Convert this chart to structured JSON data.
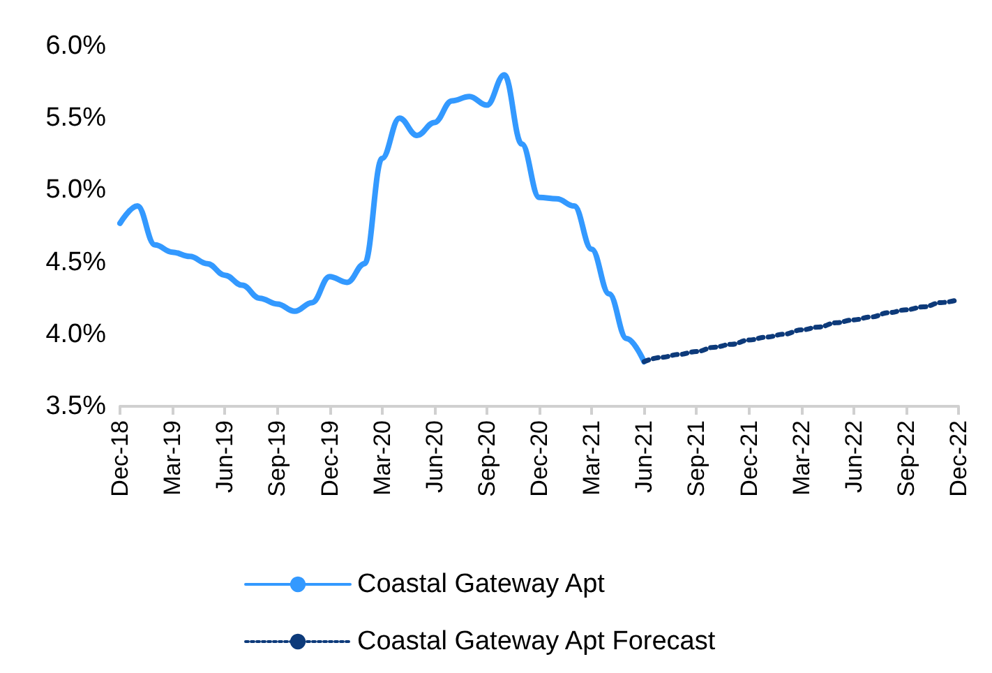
{
  "chart_data": {
    "type": "line",
    "categories": [
      "Dec-18",
      null,
      null,
      "Mar-19",
      null,
      null,
      "Jun-19",
      null,
      null,
      "Sep-19",
      null,
      null,
      "Dec-19",
      null,
      null,
      "Mar-20",
      null,
      null,
      "Jun-20",
      null,
      null,
      "Sep-20",
      null,
      null,
      "Dec-20",
      null,
      null,
      "Mar-21",
      null,
      null,
      "Jun-21",
      null,
      null,
      "Sep-21",
      null,
      null,
      "Dec-21",
      null,
      null,
      "Mar-22",
      null,
      null,
      "Jun-22",
      null,
      null,
      "Sep-22",
      null,
      null,
      "Dec-22"
    ],
    "series": [
      {
        "name": "Coastal Gateway Apt",
        "color": "#3399ff",
        "line_style": "solid",
        "values": [
          4.77,
          4.89,
          4.62,
          4.57,
          4.54,
          4.49,
          4.41,
          4.34,
          4.25,
          4.21,
          4.16,
          4.22,
          4.4,
          4.36,
          4.49,
          5.22,
          5.5,
          5.38,
          5.47,
          5.62,
          5.65,
          5.59,
          5.8,
          5.32,
          4.95,
          4.94,
          4.89,
          4.59,
          4.28,
          3.97,
          3.81,
          null,
          null,
          null,
          null,
          null,
          null,
          null,
          null,
          null,
          null,
          null,
          null,
          null,
          null,
          null,
          null,
          null,
          null
        ]
      },
      {
        "name": "Coastal Gateway Apt Forecast",
        "color": "#0d3a7a",
        "line_style": "dotted",
        "values": [
          null,
          null,
          null,
          null,
          null,
          null,
          null,
          null,
          null,
          null,
          null,
          null,
          null,
          null,
          null,
          null,
          null,
          null,
          null,
          null,
          null,
          null,
          null,
          null,
          null,
          null,
          null,
          null,
          null,
          null,
          3.81,
          3.84,
          3.86,
          3.88,
          3.91,
          3.93,
          3.96,
          3.98,
          4.0,
          4.03,
          4.05,
          4.08,
          4.1,
          4.12,
          4.15,
          4.17,
          4.19,
          4.22,
          4.24
        ]
      }
    ],
    "ylim": [
      3.5,
      6.0
    ],
    "yticks": [
      {
        "value": 3.5,
        "label": "3.5%"
      },
      {
        "value": 4.0,
        "label": "4.0%"
      },
      {
        "value": 4.5,
        "label": "4.5%"
      },
      {
        "value": 5.0,
        "label": "5.0%"
      },
      {
        "value": 5.5,
        "label": "5.5%"
      },
      {
        "value": 6.0,
        "label": "6.0%"
      }
    ],
    "grid": false,
    "legend": "bottom",
    "marker": "none"
  }
}
